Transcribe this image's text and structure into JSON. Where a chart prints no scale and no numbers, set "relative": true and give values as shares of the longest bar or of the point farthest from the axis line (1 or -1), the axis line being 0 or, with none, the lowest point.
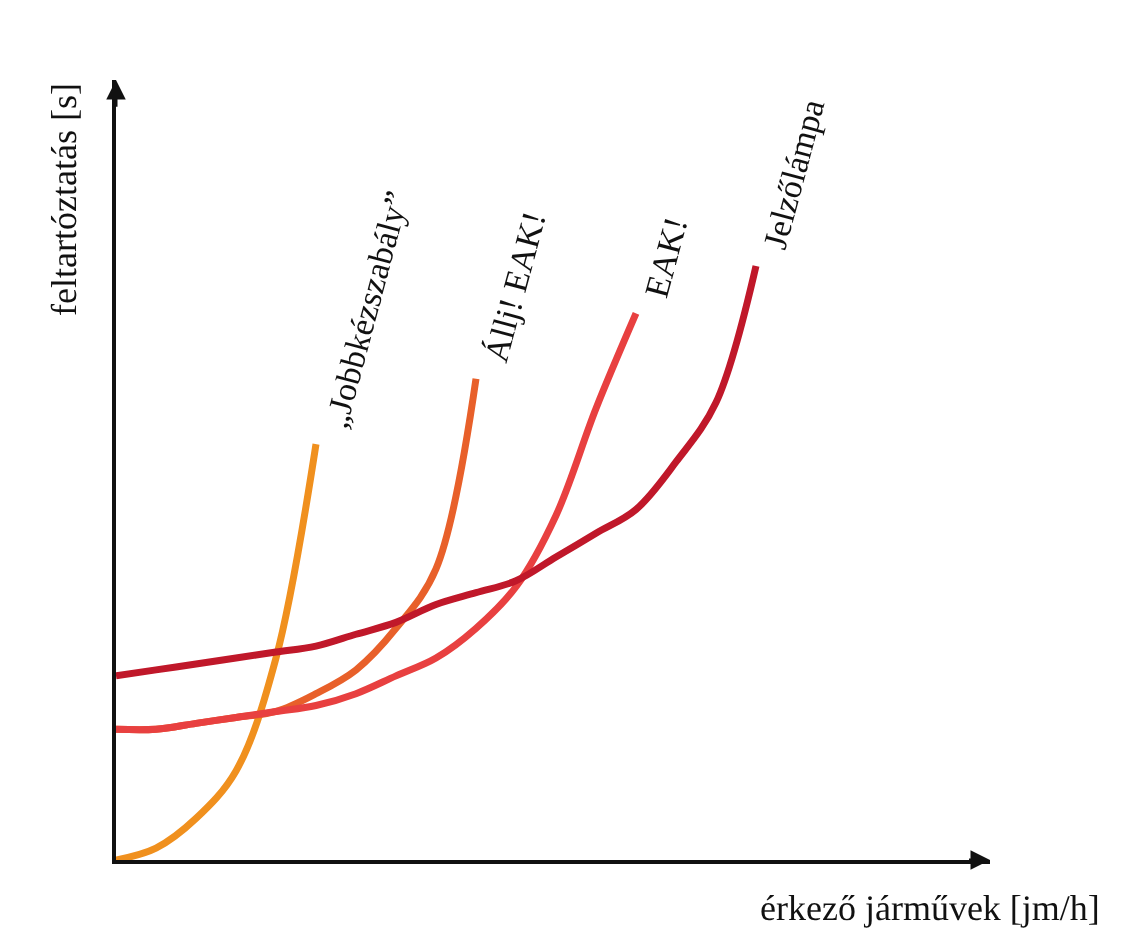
{
  "chart_data": {
    "type": "line",
    "relative": true,
    "xlabel": "érkező járművek [jm/h]",
    "ylabel": "feltartóztatás [s]",
    "categories": [
      null,
      null,
      null,
      null,
      null,
      null,
      null,
      null,
      null,
      null,
      null,
      null,
      null,
      null,
      null,
      null,
      null
    ],
    "series": [
      {
        "name": "„Jobbkézszabály”",
        "color": "#f0901e",
        "values": [
          0,
          0.02,
          0.07,
          0.15,
          0.34,
          0.7,
          null,
          null,
          null,
          null,
          null,
          null,
          null,
          null,
          null,
          null,
          null
        ]
      },
      {
        "name": "Állj! EAK!",
        "color": "#e8602a",
        "values": [
          0.22,
          0.22,
          0.23,
          0.24,
          0.25,
          0.28,
          0.32,
          0.39,
          0.49,
          0.81,
          null,
          null,
          null,
          null,
          null,
          null,
          null
        ]
      },
      {
        "name": "EAK!",
        "color": "#e84040",
        "values": [
          0.22,
          0.22,
          0.23,
          0.24,
          0.25,
          0.26,
          0.28,
          0.31,
          0.34,
          0.39,
          0.46,
          0.58,
          0.76,
          0.92,
          null,
          null,
          null
        ]
      },
      {
        "name": "Jelzőlámpa",
        "color": "#c0182a",
        "values": [
          0.31,
          0.32,
          0.33,
          0.34,
          0.35,
          0.36,
          0.38,
          0.4,
          0.43,
          0.45,
          0.47,
          0.51,
          0.55,
          0.59,
          0.67,
          0.77,
          1.0
        ]
      }
    ],
    "legend": false,
    "tick_labels": false,
    "marker": "none",
    "line_style": "solid"
  }
}
